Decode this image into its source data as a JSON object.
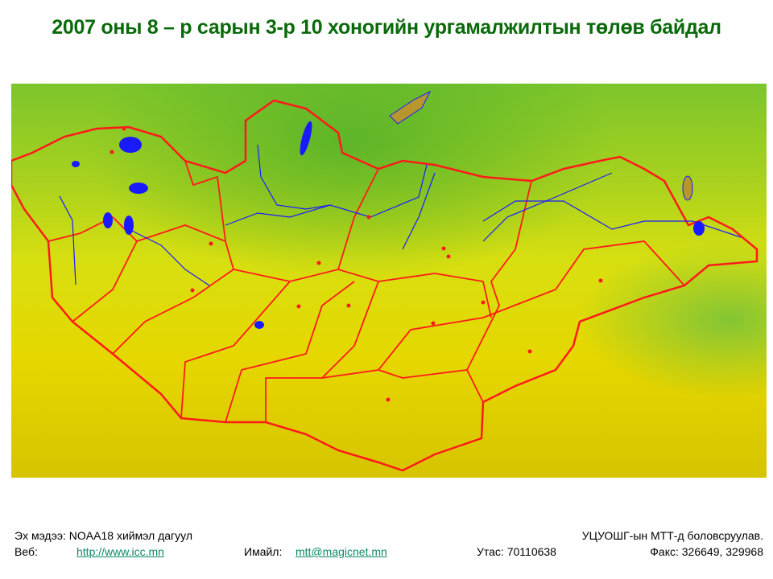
{
  "title": "2007 оны 8 – р сарын 3-р 10 хоногийн ургамалжилтын төлөв байдал",
  "footer": {
    "source": "Эх мэдээ: NOAA18 хиймэл дагуул",
    "producer": "УЦУОШГ-ын МТТ-д боловсруулав.",
    "web_label": "Веб:",
    "web_link": "http://www.icc.mn",
    "email_label": "Имайл:",
    "email_link": "mtt@magicnet.mn",
    "phone": "Утас: 70110638",
    "fax": "Факс: 326649, 329968"
  },
  "map": {
    "colors": {
      "border": "#ff1a1a",
      "water": "#1a1aff",
      "high_vegetation": "#3fae2a",
      "low_vegetation": "#e8d800",
      "foreign_lake": "#b8962e"
    }
  }
}
